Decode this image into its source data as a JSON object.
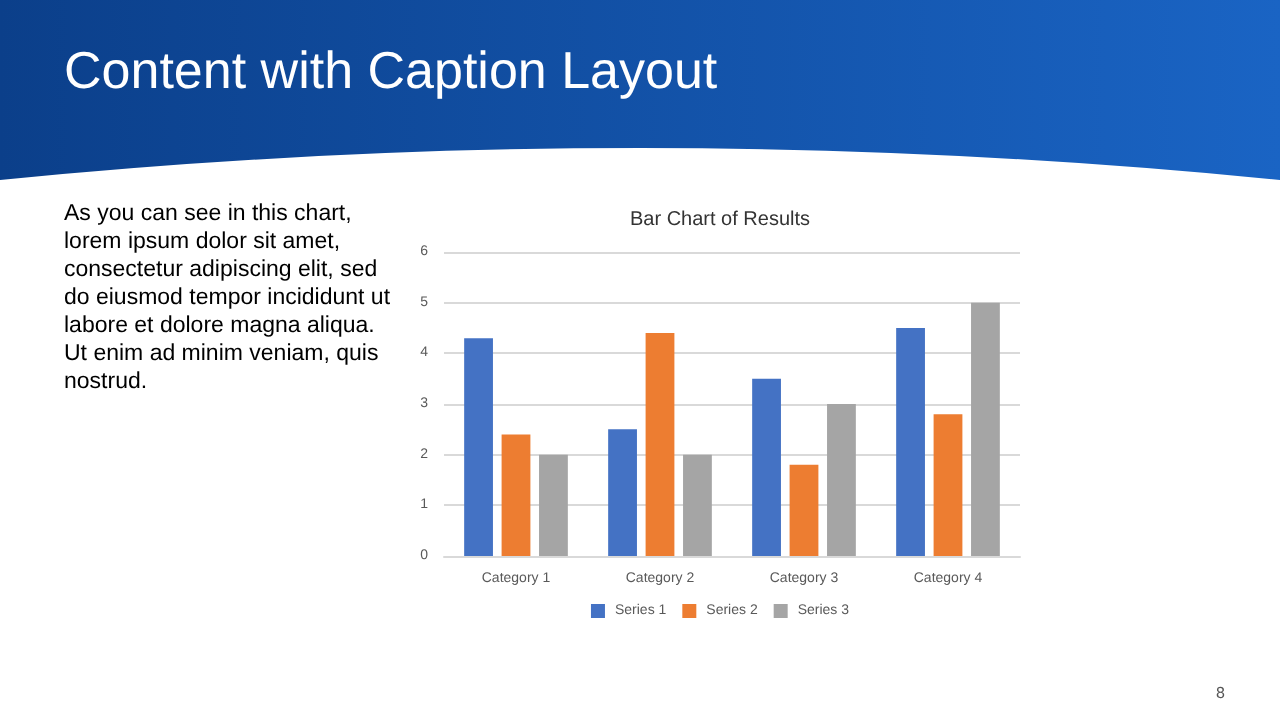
{
  "chart_data": {
    "type": "bar",
    "title": "Bar Chart of Results",
    "categories": [
      "Category 1",
      "Category 2",
      "Category 3",
      "Category 4"
    ],
    "series": [
      {
        "name": "Series 1",
        "color": "#4472c4",
        "values": [
          4.3,
          2.5,
          3.5,
          4.5
        ]
      },
      {
        "name": "Series 2",
        "color": "#ed7d31",
        "values": [
          2.4,
          4.4,
          1.8,
          2.8
        ]
      },
      {
        "name": "Series 3",
        "color": "#a5a5a5",
        "values": [
          2,
          2,
          3,
          5
        ]
      }
    ],
    "ylim": [
      0,
      6
    ],
    "yticks": [
      0,
      1,
      2,
      3,
      4,
      5,
      6
    ],
    "grid": "y",
    "legend": "bottom",
    "annotations": [
      "Content with Caption Layout",
      "As you can see in this chart, lorem ipsum dolor sit amet, consectetur adipiscing elit, sed do eiusmod tempor incididunt ut labore et dolore magna aliqua. Ut enim ad minim veniam, quis nostrud.",
      "8"
    ]
  }
}
